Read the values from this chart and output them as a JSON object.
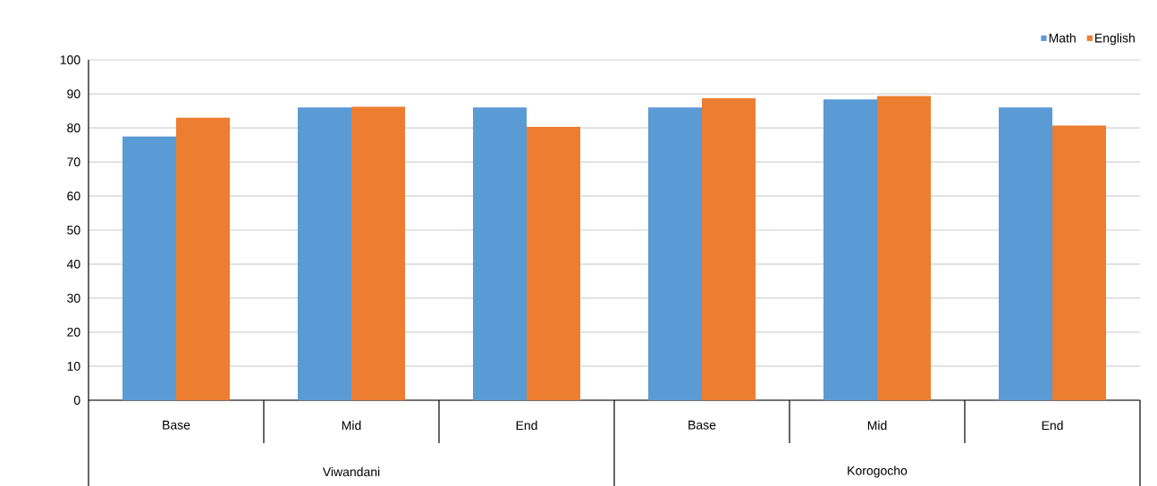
{
  "chart_data": {
    "type": "bar",
    "categories": [
      "Base",
      "Mid",
      "End",
      "Base",
      "Mid",
      "End"
    ],
    "series": [
      {
        "name": "Math",
        "color": "#5b9bd5",
        "values": [
          77.5,
          86,
          86,
          86,
          88.4,
          86
        ]
      },
      {
        "name": "English",
        "color": "#ed7d31",
        "values": [
          83,
          86.2,
          80.3,
          88.7,
          89.4,
          80.7
        ]
      }
    ],
    "ylim": [
      0,
      100
    ],
    "yticks": [
      0,
      10,
      20,
      30,
      40,
      50,
      60,
      70,
      80,
      90,
      100
    ],
    "grid": "y",
    "legend": "top right",
    "annotations": [
      "Viwandani",
      "Korogocho"
    ]
  }
}
